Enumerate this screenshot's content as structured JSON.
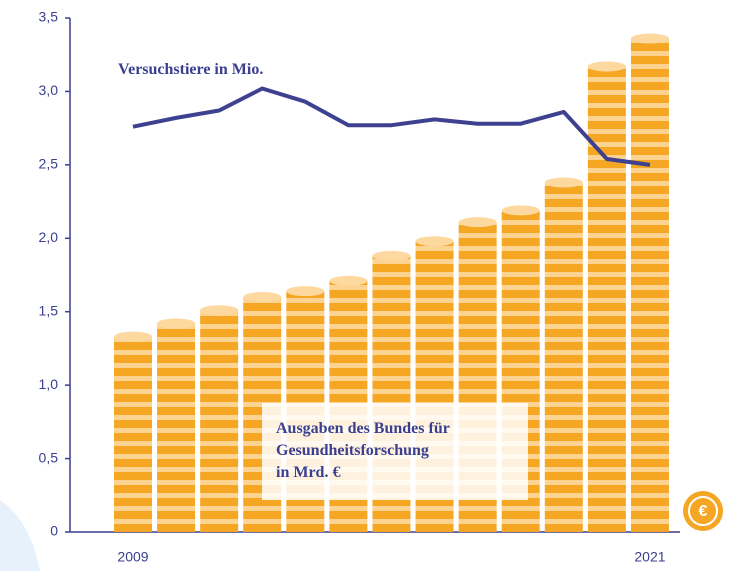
{
  "chart_data": {
    "type": "bar",
    "categories": [
      "2009",
      null,
      null,
      null,
      null,
      null,
      null,
      null,
      null,
      null,
      null,
      null,
      "2021"
    ],
    "series": [
      {
        "name": "Ausgaben des Bundes für\nGesundheitsforschung\nin Mrd. €",
        "type": "bar",
        "color": "#f5a623",
        "values": [
          1.33,
          1.42,
          1.51,
          1.6,
          1.64,
          1.71,
          1.88,
          1.98,
          2.11,
          2.19,
          2.38,
          3.17,
          3.36
        ]
      },
      {
        "name": "Versuchstiere in Mio.",
        "type": "line",
        "color": "#3d4190",
        "values": [
          2.76,
          2.82,
          2.87,
          3.02,
          2.93,
          2.77,
          2.77,
          2.81,
          2.78,
          2.78,
          2.86,
          2.54,
          2.5
        ]
      }
    ],
    "ylim": [
      0,
      3.5
    ],
    "yticks": [
      0,
      {
        "value": 0.5,
        "label": "0,5"
      },
      {
        "value": 1,
        "label": "1,0"
      },
      {
        "value": 1.5,
        "label": "1,5"
      },
      {
        "value": 2,
        "label": "2,0"
      },
      {
        "value": 2.5,
        "label": "2,5"
      },
      {
        "value": 3,
        "label": "3,0"
      },
      {
        "value": 3.5,
        "label": "3,5"
      }
    ]
  }
}
